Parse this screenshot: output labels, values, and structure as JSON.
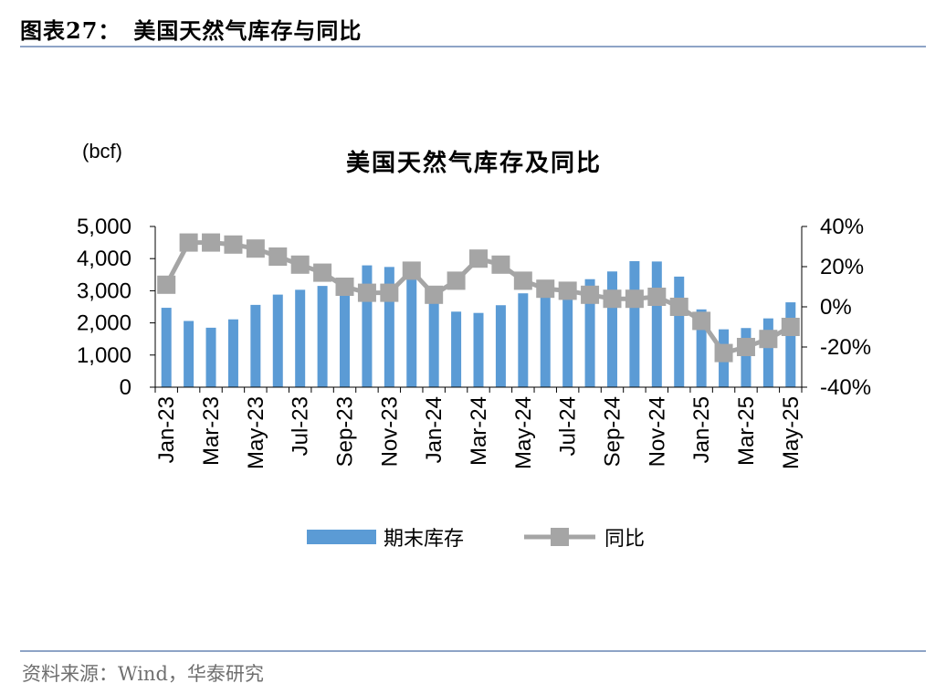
{
  "header": {
    "label": "图表27：",
    "title": "美国天然气库存与同比"
  },
  "footer": {
    "source": "资料来源：Wind，华泰研究"
  },
  "colors": {
    "bar": "#5b9bd5",
    "line": "#a5a5a5",
    "rule": "#8ea4c6"
  },
  "chart_data": {
    "type": "bar",
    "title": "美国天然气库存及同比",
    "unit_label": "(bcf)",
    "categories": [
      "Jan-23",
      "Feb-23",
      "Mar-23",
      "Apr-23",
      "May-23",
      "Jun-23",
      "Jul-23",
      "Aug-23",
      "Sep-23",
      "Oct-23",
      "Nov-23",
      "Dec-23",
      "Jan-24",
      "Feb-24",
      "Mar-24",
      "Apr-24",
      "May-24",
      "Jun-24",
      "Jul-24",
      "Aug-24",
      "Sep-24",
      "Oct-24",
      "Nov-24",
      "Dec-24",
      "Jan-25",
      "Feb-25",
      "Mar-25",
      "Apr-25",
      "May-25"
    ],
    "x_tick_labels": [
      "Jan-23",
      "Mar-23",
      "May-23",
      "Jul-23",
      "Sep-23",
      "Nov-23",
      "Jan-24",
      "Mar-24",
      "May-24",
      "Jul-24",
      "Sep-24",
      "Nov-24",
      "Jan-25",
      "Mar-25",
      "May-25"
    ],
    "y_left": {
      "ticks": [
        "0",
        "1,000",
        "2,000",
        "3,000",
        "4,000",
        "5,000"
      ],
      "range": [
        0,
        5000
      ]
    },
    "y_right": {
      "ticks": [
        "-40%",
        "-20%",
        "0%",
        "20%",
        "40%"
      ],
      "range": [
        -40,
        40
      ]
    },
    "legend_position": "bottom",
    "series": [
      {
        "name": "期末库存",
        "type": "bar",
        "axis": "left",
        "values": [
          2470,
          2060,
          1850,
          2110,
          2560,
          2880,
          3030,
          3150,
          3330,
          3790,
          3740,
          3530,
          2850,
          2350,
          2310,
          2550,
          2920,
          3160,
          3260,
          3360,
          3600,
          3920,
          3910,
          3440,
          2420,
          1800,
          1840,
          2140,
          2640
        ]
      },
      {
        "name": "同比",
        "type": "line",
        "axis": "right",
        "values": [
          11,
          32,
          32,
          31,
          29,
          25,
          21,
          17,
          10,
          7,
          7,
          18,
          6,
          13,
          24,
          21,
          13,
          9,
          8,
          6,
          4,
          4,
          5,
          0,
          -7,
          -23,
          -20,
          -16,
          -10
        ]
      }
    ]
  }
}
